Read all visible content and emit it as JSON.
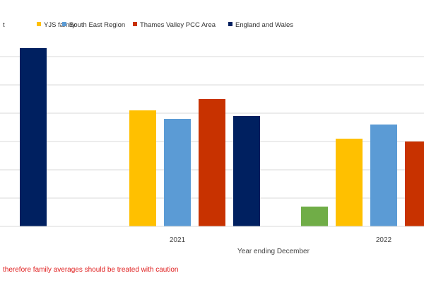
{
  "chart_data": {
    "type": "bar",
    "categories": [
      "",
      "2021",
      "2022"
    ],
    "series": [
      {
        "name": "t",
        "color": "#70ad47",
        "values": [
          null,
          null,
          0.7
        ]
      },
      {
        "name": "YJS family",
        "color": "#ffc000",
        "values": [
          null,
          4.1,
          3.1
        ]
      },
      {
        "name": "South East Region",
        "color": "#5b9bd5",
        "values": [
          null,
          3.8,
          3.6
        ]
      },
      {
        "name": "Thames Valley PCC Area",
        "color": "#c83200",
        "values": [
          null,
          4.5,
          3.0
        ]
      },
      {
        "name": "England and Wales",
        "color": "#002060",
        "values": [
          6.3,
          3.9,
          null
        ]
      }
    ],
    "xlabel": "Year ending December",
    "ylim": [
      0,
      6.5
    ],
    "grid": true,
    "legend": "top"
  },
  "footnote": "therefore family averages should be treated with caution"
}
